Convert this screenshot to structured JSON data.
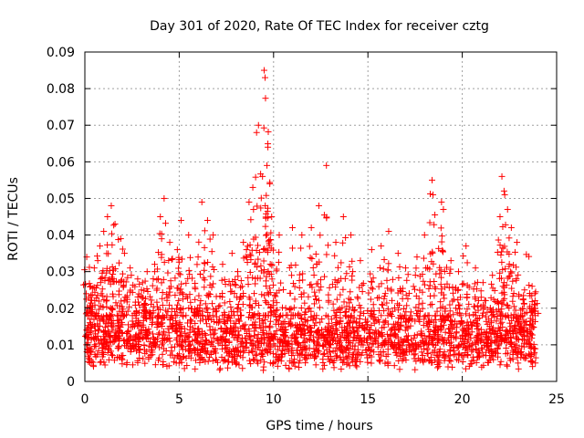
{
  "chart_data": {
    "type": "scatter",
    "title": "Day 301 of 2020, Rate Of TEC Index for receiver cztg",
    "xlabel": "GPS time / hours",
    "ylabel": "ROTI / TECUs",
    "xlim": [
      0,
      25
    ],
    "ylim": [
      0,
      0.09
    ],
    "xticks": [
      "0",
      "5",
      "10",
      "15",
      "20",
      "25"
    ],
    "yticks": [
      "0",
      "0.01",
      "0.02",
      "0.03",
      "0.04",
      "0.05",
      "0.06",
      "0.07",
      "0.08",
      "0.09"
    ],
    "grid": true,
    "marker": "plus",
    "series": [
      {
        "name": "ROTI",
        "color": "#ff0000",
        "points": [
          [
            0.1,
            0.034
          ],
          [
            0.3,
            0.026
          ],
          [
            0.5,
            0.031
          ],
          [
            0.8,
            0.037
          ],
          [
            1.0,
            0.041
          ],
          [
            1.2,
            0.045
          ],
          [
            1.4,
            0.048
          ],
          [
            1.6,
            0.043
          ],
          [
            1.9,
            0.039
          ],
          [
            2.1,
            0.035
          ],
          [
            2.4,
            0.031
          ],
          [
            2.8,
            0.028
          ],
          [
            3.0,
            0.025
          ],
          [
            3.3,
            0.03
          ],
          [
            3.7,
            0.032
          ],
          [
            4.0,
            0.045
          ],
          [
            4.2,
            0.05
          ],
          [
            4.5,
            0.038
          ],
          [
            4.9,
            0.036
          ],
          [
            5.1,
            0.044
          ],
          [
            5.5,
            0.04
          ],
          [
            6.0,
            0.034
          ],
          [
            6.2,
            0.049
          ],
          [
            6.5,
            0.044
          ],
          [
            6.8,
            0.04
          ],
          [
            7.3,
            0.032
          ],
          [
            7.8,
            0.035
          ],
          [
            8.1,
            0.03
          ],
          [
            8.4,
            0.038
          ],
          [
            8.7,
            0.049
          ],
          [
            8.9,
            0.053
          ],
          [
            9.1,
            0.068
          ],
          [
            9.2,
            0.07
          ],
          [
            9.5,
            0.085
          ],
          [
            9.55,
            0.083
          ],
          [
            9.7,
            0.064
          ],
          [
            9.65,
            0.059
          ],
          [
            9.8,
            0.054
          ],
          [
            9.9,
            0.045
          ],
          [
            10.3,
            0.04
          ],
          [
            11.0,
            0.042
          ],
          [
            11.5,
            0.04
          ],
          [
            12.0,
            0.042
          ],
          [
            12.4,
            0.048
          ],
          [
            12.8,
            0.059
          ],
          [
            13.3,
            0.038
          ],
          [
            13.7,
            0.045
          ],
          [
            14.1,
            0.04
          ],
          [
            14.6,
            0.033
          ],
          [
            15.2,
            0.036
          ],
          [
            15.7,
            0.037
          ],
          [
            16.1,
            0.041
          ],
          [
            16.6,
            0.035
          ],
          [
            17.0,
            0.031
          ],
          [
            17.6,
            0.034
          ],
          [
            18.0,
            0.04
          ],
          [
            18.4,
            0.055
          ],
          [
            18.45,
            0.051
          ],
          [
            18.9,
            0.049
          ],
          [
            19.0,
            0.047
          ],
          [
            19.4,
            0.033
          ],
          [
            19.8,
            0.03
          ],
          [
            20.2,
            0.037
          ],
          [
            20.7,
            0.031
          ],
          [
            21.1,
            0.027
          ],
          [
            21.6,
            0.029
          ],
          [
            22.0,
            0.045
          ],
          [
            22.1,
            0.056
          ],
          [
            22.25,
            0.051
          ],
          [
            22.4,
            0.047
          ],
          [
            22.6,
            0.042
          ],
          [
            22.9,
            0.038
          ],
          [
            23.3,
            0.025
          ],
          [
            23.7,
            0.026
          ],
          [
            23.85,
            0.024
          ]
        ],
        "dense_band": {
          "x_range": [
            0.0,
            23.9
          ],
          "y_typical_range": [
            0.003,
            0.02
          ],
          "description": "dense cluster of ROTI samples across the whole day"
        }
      }
    ]
  }
}
